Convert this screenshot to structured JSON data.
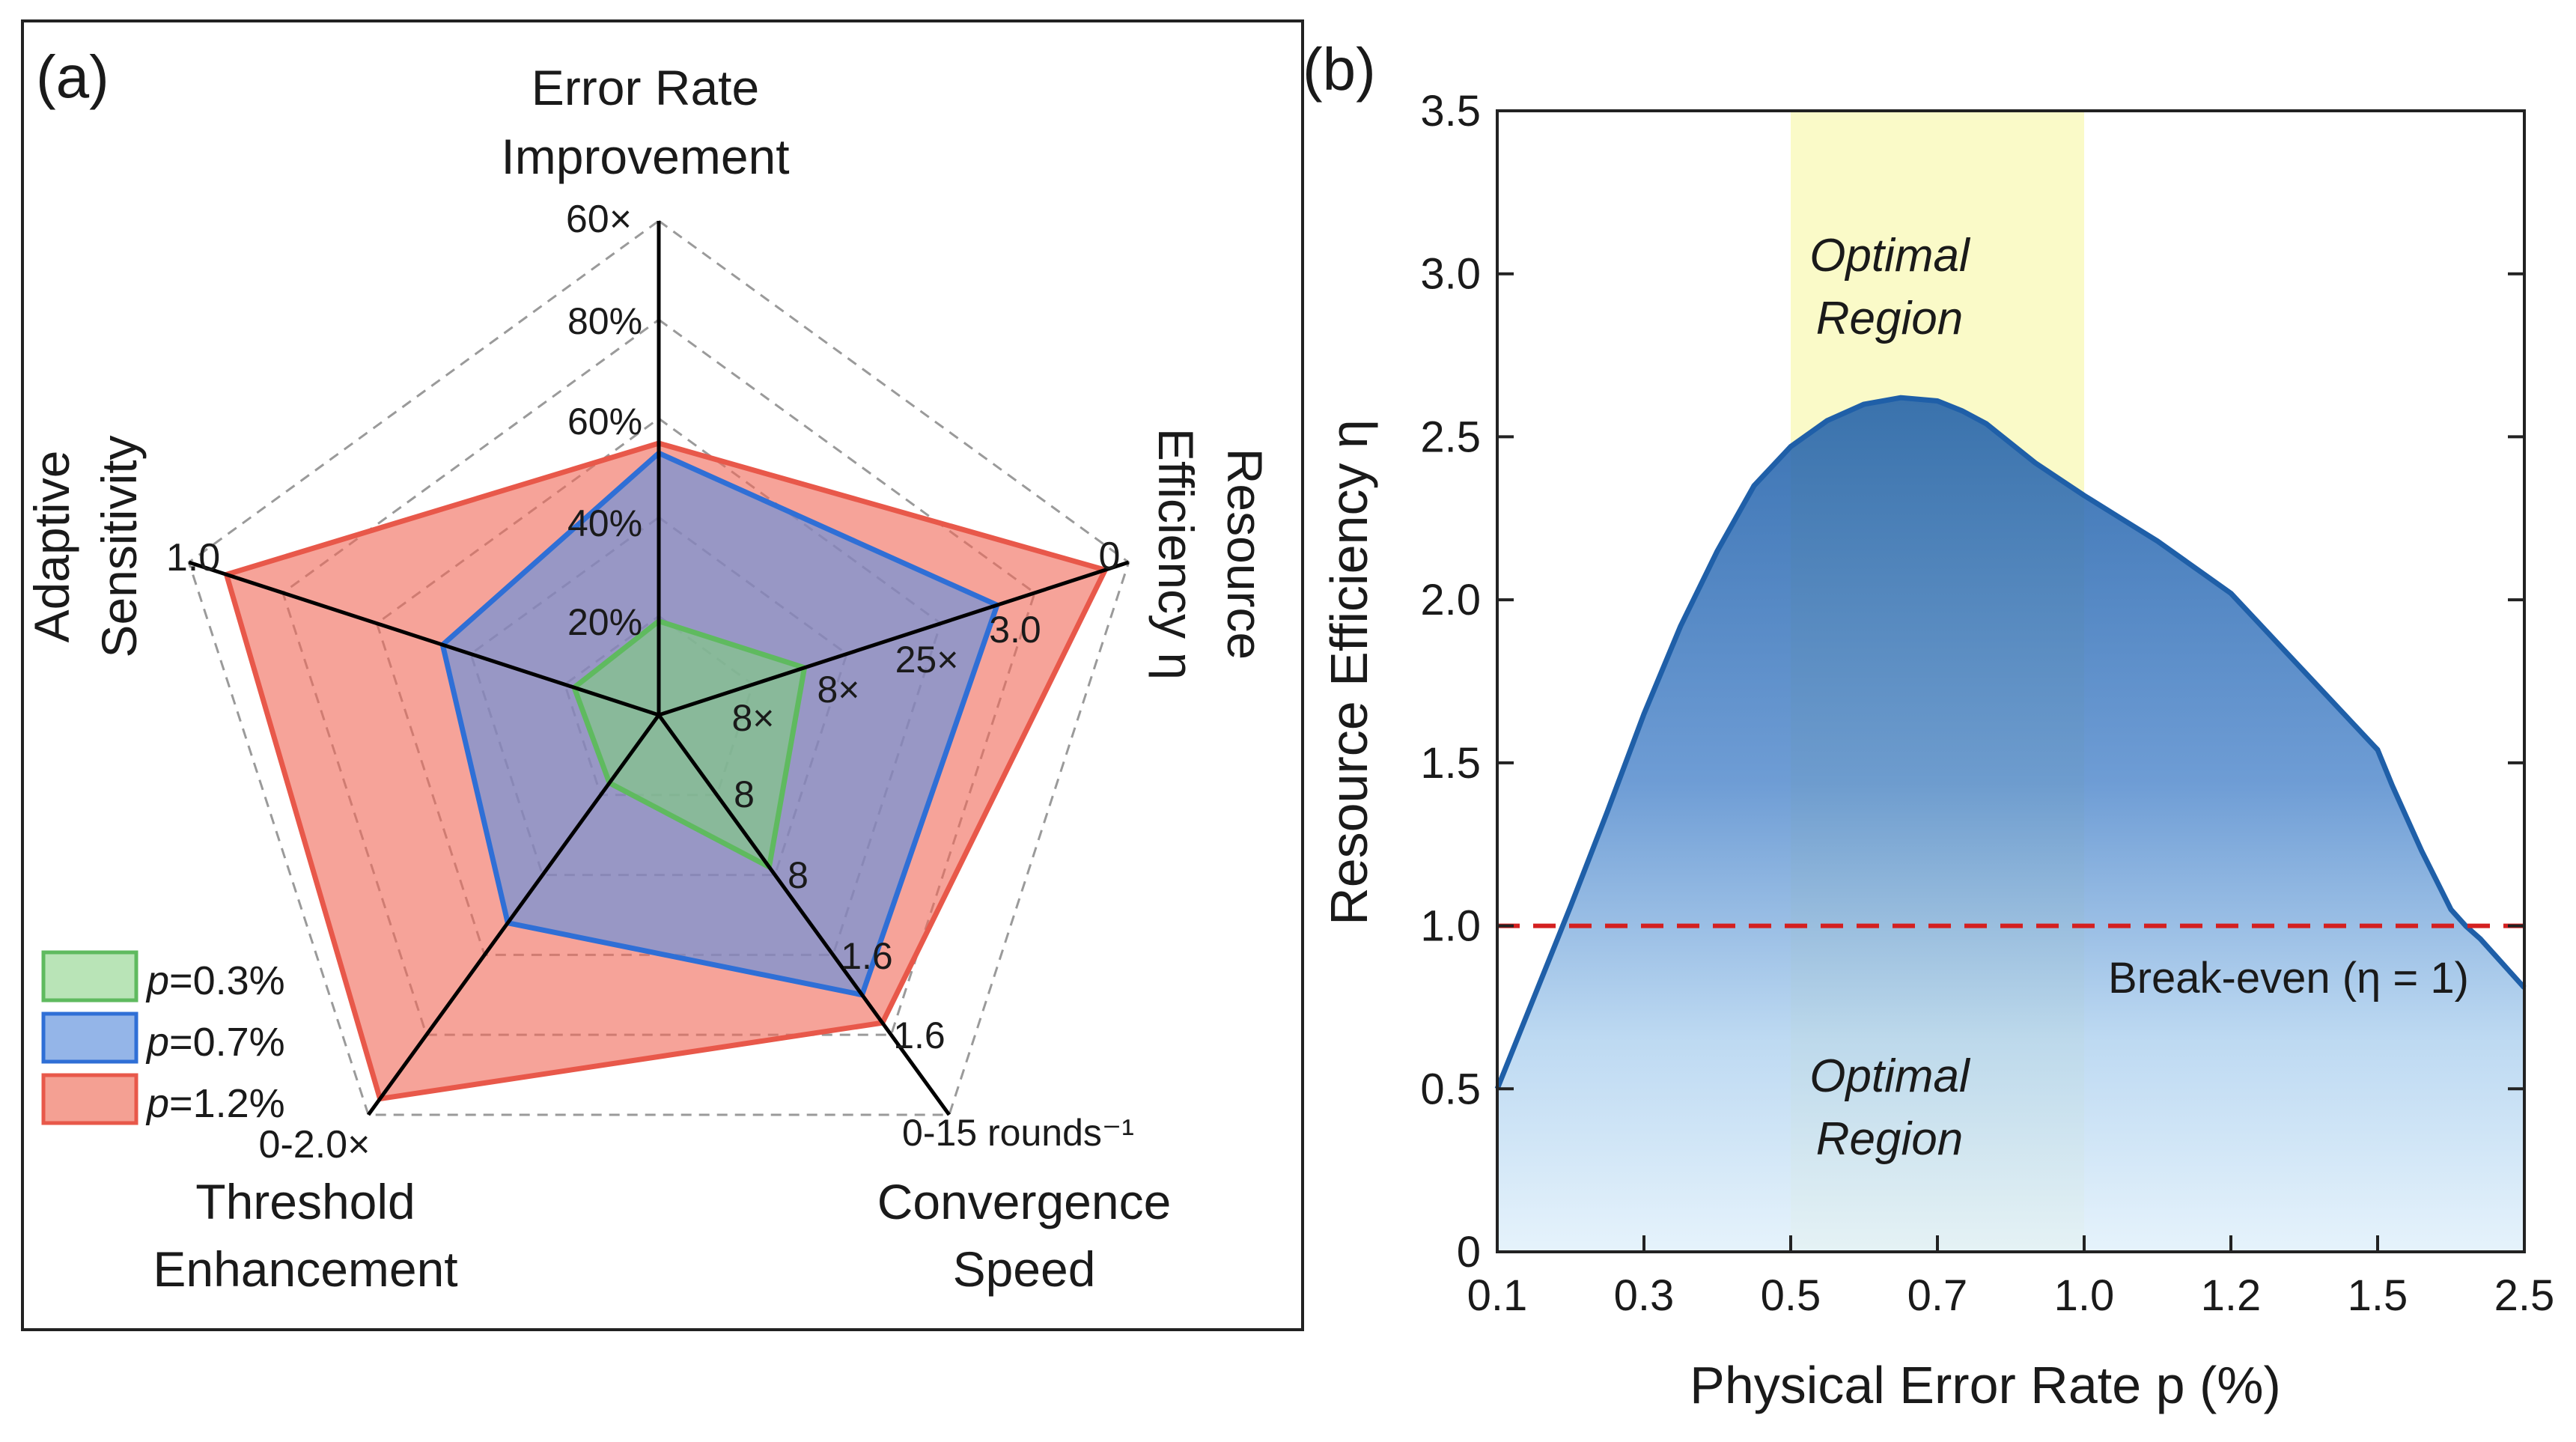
{
  "colors": {
    "green": "#7fcf7f",
    "green_edge": "#5fba5f",
    "blue": "#5d8fe0",
    "blue_edge": "#2f6fd6",
    "red": "#f06a5a",
    "red_edge": "#e8584a",
    "curve": "#1f5fa8",
    "breakeven": "#d42020",
    "optimal_band": "#fafac8"
  },
  "chart_data": [
    {
      "type": "radar",
      "panel_label": "(a)",
      "axes": [
        {
          "label_lines": [
            "Error Rate",
            "Improvement"
          ],
          "range": "60×"
        },
        {
          "label_lines": [
            "Resource",
            "Efficiency η"
          ],
          "range": "0"
        },
        {
          "label_lines": [
            "Convergence",
            "Speed"
          ],
          "range": "0-15 rounds⁻¹"
        },
        {
          "label_lines": [
            "Threshold",
            "Enhancement"
          ],
          "range": "0-2.0×"
        },
        {
          "label_lines": [
            "Adaptive",
            "Sensitivity"
          ],
          "range": "1.0"
        }
      ],
      "tick_labels": [
        "20%",
        "40%",
        "60%",
        "80%",
        "3.0",
        "25×",
        "8×",
        "8×",
        "8",
        "8",
        "1.6",
        "1.6"
      ],
      "levels": [
        0.2,
        0.4,
        0.6,
        0.8,
        1.0
      ],
      "series": [
        {
          "name": "p=0.3%",
          "p_value": "0.3%",
          "values": [
            0.19,
            0.31,
            0.38,
            0.17,
            0.18
          ]
        },
        {
          "name": "p=0.7%",
          "p_value": "0.7%",
          "values": [
            0.53,
            0.72,
            0.7,
            0.52,
            0.46
          ]
        },
        {
          "name": "p=1.2%",
          "p_value": "1.2%",
          "values": [
            0.55,
            0.95,
            0.77,
            0.96,
            0.92
          ]
        }
      ],
      "legend": {
        "position": "bottom-left",
        "prefix": "p"
      }
    },
    {
      "type": "area",
      "panel_label": "(b)",
      "xlabel": "Physical Error Rate p (%)",
      "ylabel": "Resource Efficiency η",
      "xticks": [
        0.1,
        0.3,
        0.5,
        0.7,
        1.0,
        1.2,
        1.5,
        2.5
      ],
      "xtick_labels": [
        "0.1",
        "0.3",
        "0.5",
        "0.7",
        "1.0",
        "1.2",
        "1.5",
        "2.5"
      ],
      "yticks": [
        0,
        0.5,
        1.0,
        1.5,
        2.0,
        2.5,
        3.0,
        3.5
      ],
      "ytick_labels": [
        "0",
        "0.5",
        "1.0",
        "1.5",
        "2.0",
        "2.5",
        "3.0",
        "3.5"
      ],
      "ylim": [
        0,
        3.5
      ],
      "series": [
        {
          "name": "Resource Efficiency",
          "x": [
            0.1,
            0.15,
            0.2,
            0.25,
            0.3,
            0.35,
            0.4,
            0.45,
            0.5,
            0.55,
            0.6,
            0.65,
            0.7,
            0.75,
            0.8,
            0.85,
            0.9,
            0.95,
            1.0,
            1.05,
            1.1,
            1.15,
            1.2,
            1.25,
            1.3,
            1.35,
            1.4,
            1.45,
            1.5,
            1.6,
            1.7,
            1.8,
            1.9,
            2.0,
            2.1,
            2.2,
            2.3,
            2.4,
            2.5
          ],
          "y": [
            0.5,
            0.78,
            1.06,
            1.35,
            1.65,
            1.92,
            2.15,
            2.35,
            2.47,
            2.55,
            2.6,
            2.62,
            2.61,
            2.58,
            2.54,
            2.48,
            2.42,
            2.37,
            2.32,
            2.25,
            2.18,
            2.1,
            2.02,
            1.94,
            1.86,
            1.78,
            1.7,
            1.62,
            1.54,
            1.43,
            1.33,
            1.23,
            1.14,
            1.05,
            1.0,
            0.96,
            0.91,
            0.86,
            0.81
          ]
        }
      ],
      "reference_line": {
        "y": 1.0,
        "label": "Break-even (η = 1)"
      },
      "band": {
        "x_range": [
          0.5,
          1.0
        ],
        "label_lines": [
          "Optimal",
          "Region"
        ]
      }
    }
  ]
}
